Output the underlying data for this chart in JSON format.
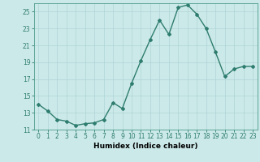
{
  "x": [
    0,
    1,
    2,
    3,
    4,
    5,
    6,
    7,
    8,
    9,
    10,
    11,
    12,
    13,
    14,
    15,
    16,
    17,
    18,
    19,
    20,
    21,
    22,
    23
  ],
  "y": [
    14.0,
    13.2,
    12.2,
    12.0,
    11.5,
    11.7,
    11.8,
    12.2,
    14.2,
    13.5,
    16.5,
    19.2,
    21.7,
    24.0,
    22.3,
    25.5,
    25.8,
    24.7,
    23.0,
    20.2,
    17.3,
    18.2,
    18.5,
    18.5
  ],
  "line_color": "#2e7d6e",
  "marker": "D",
  "marker_size": 2.0,
  "bg_color": "#cce9e9",
  "grid_color": "#aed4d4",
  "xlabel": "Humidex (Indice chaleur)",
  "ylim": [
    11,
    26
  ],
  "xlim": [
    -0.5,
    23.5
  ],
  "yticks": [
    11,
    13,
    15,
    17,
    19,
    21,
    23,
    25
  ],
  "xticks": [
    0,
    1,
    2,
    3,
    4,
    5,
    6,
    7,
    8,
    9,
    10,
    11,
    12,
    13,
    14,
    15,
    16,
    17,
    18,
    19,
    20,
    21,
    22,
    23
  ],
  "xlabel_fontsize": 6.5,
  "tick_fontsize": 5.5,
  "line_width": 1.0
}
